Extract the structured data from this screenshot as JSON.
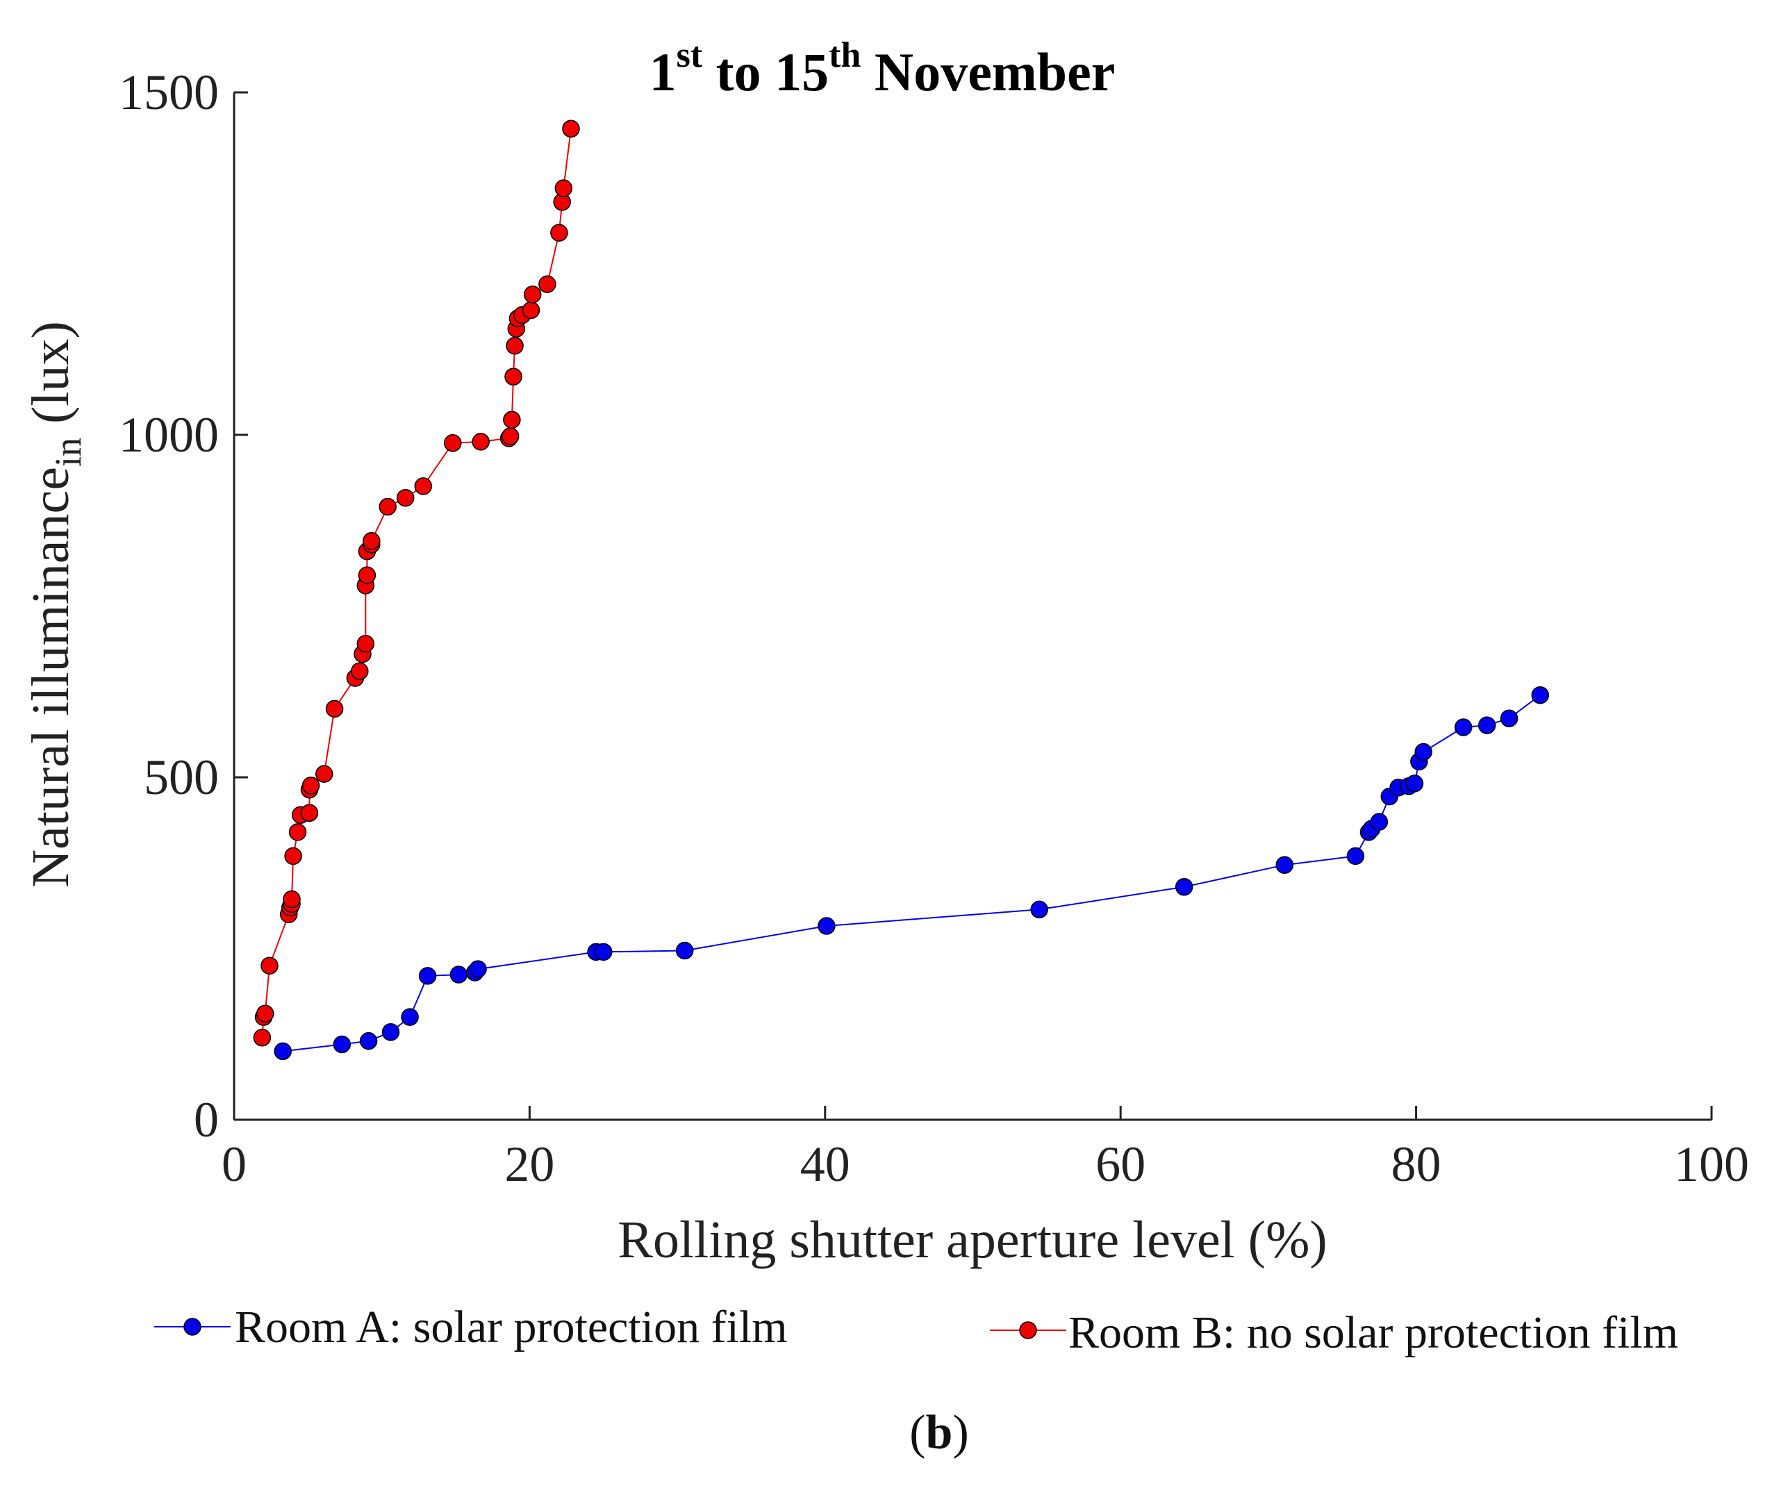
{
  "chart_data": {
    "type": "line",
    "title": {
      "prefix": "1",
      "sup1": "st",
      "middle": " to 15",
      "sup2": "th",
      "suffix": " November"
    },
    "xlabel": "Rolling shutter aperture level (%)",
    "ylabel": {
      "main": "Natural illuminance",
      "sub": "in",
      "unit": "(lux)"
    },
    "xlim": [
      0,
      100
    ],
    "ylim": [
      0,
      1500
    ],
    "xticks": [
      0,
      20,
      40,
      60,
      80,
      100
    ],
    "yticks": [
      0,
      500,
      1000,
      1500
    ],
    "grid": false,
    "legend_position": "bottom",
    "panel_label": {
      "open": "(",
      "letter": "b",
      "close": ")"
    },
    "series": [
      {
        "name": "Room A: solar protection film",
        "color": "#0000ee",
        "x": [
          3.3,
          7.3,
          9.1,
          10.6,
          11.9,
          13.1,
          15.2,
          16.3,
          16.5,
          24.5,
          25.0,
          30.5,
          40.1,
          54.5,
          64.3,
          71.1,
          75.9,
          76.8,
          77.0,
          77.5,
          78.2,
          78.8,
          79.5,
          79.9,
          80.2,
          80.5,
          83.2,
          84.8,
          86.3,
          88.4
        ],
        "y": [
          100,
          110,
          115,
          128,
          150,
          210,
          212,
          215,
          220,
          245,
          245,
          247,
          283,
          307,
          340,
          372,
          385,
          420,
          425,
          435,
          472,
          485,
          487,
          491,
          523,
          537,
          573,
          576,
          586,
          620
        ]
      },
      {
        "name": "Room B: no solar protection film",
        "color": "#ee0000",
        "x": [
          1.9,
          2.0,
          2.1,
          2.4,
          3.7,
          3.8,
          3.9,
          3.9,
          4.0,
          4.3,
          4.5,
          5.1,
          5.1,
          5.2,
          6.1,
          6.8,
          8.2,
          8.5,
          8.7,
          8.9,
          8.9,
          9.0,
          9.0,
          9.3,
          9.3,
          10.4,
          11.6,
          12.8,
          14.8,
          16.7,
          18.6,
          18.7,
          18.8,
          18.9,
          19.0,
          19.1,
          19.2,
          19.5,
          20.1,
          20.2,
          21.2,
          22.0,
          22.2,
          22.3,
          22.8
        ],
        "y": [
          120,
          150,
          155,
          225,
          300,
          310,
          315,
          322,
          385,
          420,
          445,
          448,
          482,
          488,
          505,
          600,
          645,
          655,
          680,
          695,
          780,
          795,
          830,
          840,
          845,
          895,
          908,
          925,
          988,
          990,
          995,
          998,
          1022,
          1085,
          1130,
          1155,
          1170,
          1175,
          1182,
          1205,
          1220,
          1295,
          1340,
          1360,
          1447
        ]
      }
    ]
  }
}
